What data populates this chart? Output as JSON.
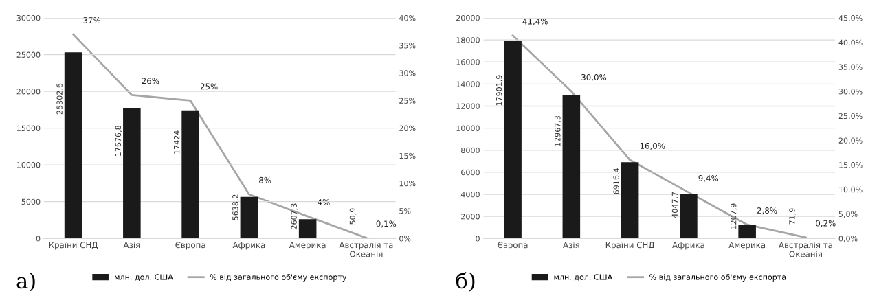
{
  "chart_data": [
    {
      "type": "bar",
      "categories": [
        "Країни СНД",
        "Азія",
        "Європа",
        "Африка",
        "Америка",
        "Австралія та Океанія"
      ],
      "series": [
        {
          "name": "млн. дол. США",
          "color": "#1a1a1a",
          "values": [
            25302.6,
            17676.8,
            17424,
            5638.2,
            2607.3,
            50.9
          ],
          "value_labels": [
            "25302,6",
            "17676,8",
            "17424",
            "5638,2",
            "2607,3",
            "50,9"
          ]
        },
        {
          "name": "% від загального об'єму експорту",
          "type": "line",
          "axis": "y2",
          "color": "#a6a6a6",
          "values": [
            37,
            26,
            25,
            8,
            4,
            0.1
          ],
          "value_labels": [
            "37%",
            "26%",
            "25%",
            "8%",
            "4%",
            "0,1%"
          ]
        }
      ],
      "ylim": [
        0,
        30000
      ],
      "yticks": [
        0,
        5000,
        10000,
        15000,
        20000,
        25000,
        30000
      ],
      "y2lim": [
        0,
        40
      ],
      "y2ticks": [
        {
          "value": 0,
          "label": "0%"
        },
        {
          "value": 5,
          "label": "5%"
        },
        {
          "value": 10,
          "label": "10%"
        },
        {
          "value": 15,
          "label": "15%"
        },
        {
          "value": 20,
          "label": "20%"
        },
        {
          "value": 25,
          "label": "25%"
        },
        {
          "value": 30,
          "label": "30%"
        },
        {
          "value": 35,
          "label": "35%"
        },
        {
          "value": 40,
          "label": "40%"
        }
      ],
      "grid": "y",
      "legend": "bottom",
      "marker": "none",
      "line_style": "solid",
      "annotations": [
        "a)"
      ]
    },
    {
      "type": "bar",
      "categories": [
        "Європа",
        "Азія",
        "Країни СНД",
        "Африка",
        "Америка",
        "Австралія та Океанія"
      ],
      "series": [
        {
          "name": "млн. дол. США",
          "color": "#1a1a1a",
          "values": [
            17901.9,
            12967.3,
            6916.4,
            4047.7,
            1207.9,
            71.9
          ],
          "value_labels": [
            "17901,9",
            "12967,3",
            "6916,4",
            "4047,7",
            "1207,9",
            "71,9"
          ]
        },
        {
          "name": "% від загального об'єму експорта",
          "type": "line",
          "axis": "y2",
          "color": "#a6a6a6",
          "values": [
            41.4,
            30.0,
            16.0,
            9.4,
            2.8,
            0.2
          ],
          "value_labels": [
            "41,4%",
            "30,0%",
            "16,0%",
            "9,4%",
            "2,8%",
            "0,2%"
          ]
        }
      ],
      "ylim": [
        0,
        20000
      ],
      "yticks": [
        0,
        2000,
        4000,
        6000,
        8000,
        10000,
        12000,
        14000,
        16000,
        18000,
        20000
      ],
      "y2lim": [
        0,
        45
      ],
      "y2ticks": [
        {
          "value": 0,
          "label": "0,0%"
        },
        {
          "value": 5,
          "label": "5,0%"
        },
        {
          "value": 10,
          "label": "10,0%"
        },
        {
          "value": 15,
          "label": "15,0%"
        },
        {
          "value": 20,
          "label": "20,0%"
        },
        {
          "value": 25,
          "label": "25,0%"
        },
        {
          "value": 30,
          "label": "30,0%"
        },
        {
          "value": 35,
          "label": "35,0%"
        },
        {
          "value": 40,
          "label": "40,0%"
        },
        {
          "value": 45,
          "label": "45,0%"
        }
      ],
      "grid": "y",
      "legend": "bottom",
      "marker": "none",
      "line_style": "solid",
      "annotations": [
        "б)"
      ]
    }
  ]
}
